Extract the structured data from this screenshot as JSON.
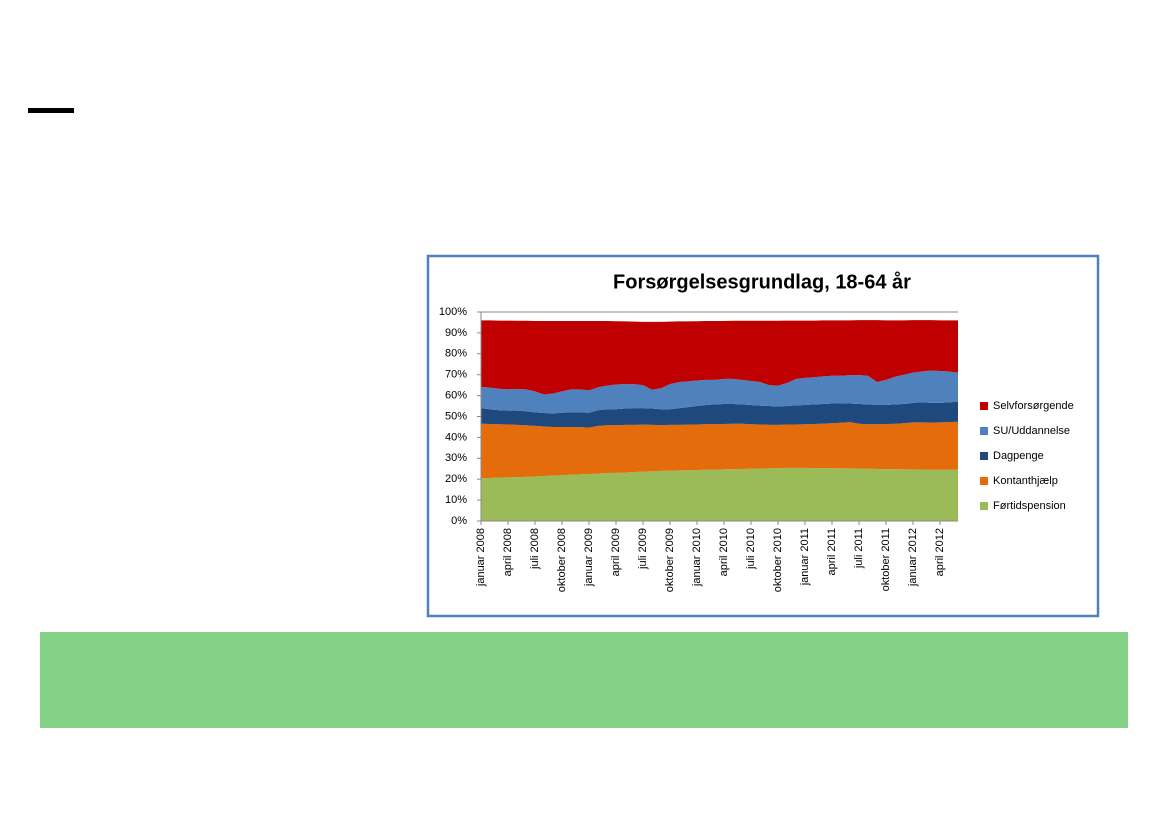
{
  "chart_data": {
    "type": "stacked_area",
    "title": "Forsørgelsesgrundlag, 18-64 år",
    "categories": [
      "januar 2008",
      null,
      null,
      "april 2008",
      null,
      null,
      "juli 2008",
      null,
      null,
      "oktober 2008",
      null,
      null,
      "januar 2009",
      null,
      null,
      "april 2009",
      null,
      null,
      "juli 2009",
      null,
      null,
      "oktober 2009",
      null,
      null,
      "januar 2010",
      null,
      null,
      "april 2010",
      null,
      null,
      "juli 2010",
      null,
      null,
      "oktober 2010",
      null,
      null,
      "januar 2011",
      null,
      null,
      "april 2011",
      null,
      null,
      "juli 2011",
      null,
      null,
      "oktober 2011",
      null,
      null,
      "januar 2012",
      null,
      null,
      "april 2012",
      null,
      null
    ],
    "series": [
      {
        "name": "Førtidspension",
        "color": "#9bbb59",
        "values": [
          20.5,
          20.6,
          20.8,
          20.9,
          21.0,
          21.1,
          21.3,
          21.5,
          21.7,
          21.9,
          22.1,
          22.3,
          22.5,
          22.7,
          22.9,
          23.0,
          23.2,
          23.4,
          23.6,
          23.8,
          24.0,
          24.1,
          24.2,
          24.3,
          24.4,
          24.5,
          24.6,
          24.7,
          24.8,
          24.9,
          25.0,
          25.1,
          25.2,
          25.3,
          25.4,
          25.4,
          25.4,
          25.3,
          25.3,
          25.3,
          25.2,
          25.2,
          25.1,
          25.0,
          24.9,
          24.8,
          24.8,
          24.7,
          24.7,
          24.6,
          24.6,
          24.5,
          24.5,
          24.5
        ]
      },
      {
        "name": "Kontanthjælp",
        "color": "#e46c0a",
        "values": [
          26.0,
          25.8,
          25.5,
          25.3,
          25.0,
          24.7,
          24.2,
          23.7,
          23.3,
          23.1,
          22.9,
          22.6,
          22.2,
          22.8,
          22.9,
          22.8,
          22.8,
          22.6,
          22.5,
          22.2,
          21.9,
          21.9,
          21.8,
          21.8,
          21.8,
          21.8,
          21.8,
          21.7,
          21.7,
          21.6,
          21.3,
          21.1,
          20.8,
          20.7,
          20.7,
          20.8,
          20.9,
          21.1,
          21.3,
          21.5,
          21.8,
          22.1,
          21.4,
          21.3,
          21.4,
          21.6,
          21.7,
          22.1,
          22.5,
          22.6,
          22.5,
          22.7,
          22.8,
          23.0
        ]
      },
      {
        "name": "Dagpenge",
        "color": "#1f497d",
        "values": [
          7.5,
          7.1,
          6.7,
          6.6,
          6.8,
          6.7,
          6.5,
          6.5,
          6.5,
          6.8,
          7.0,
          7.1,
          7.1,
          7.5,
          7.7,
          7.7,
          7.8,
          8.0,
          7.9,
          7.8,
          7.6,
          7.5,
          8.0,
          8.4,
          8.8,
          9.2,
          9.4,
          9.6,
          9.5,
          9.3,
          9.2,
          9.0,
          9.0,
          8.8,
          8.9,
          9.1,
          9.2,
          9.4,
          9.4,
          9.4,
          9.3,
          8.9,
          9.5,
          9.5,
          9.2,
          9.1,
          9.3,
          9.2,
          9.3,
          9.6,
          9.4,
          9.3,
          9.5,
          9.5
        ]
      },
      {
        "name": "SU/Uddannelse",
        "color": "#4f81bd",
        "values": [
          10.2,
          10.3,
          10.3,
          10.2,
          10.4,
          10.5,
          10.0,
          8.8,
          9.5,
          10.2,
          11.0,
          11.0,
          10.7,
          11.0,
          11.3,
          11.8,
          11.7,
          11.5,
          11.0,
          9.0,
          10.0,
          12.0,
          12.5,
          12.3,
          12.2,
          12.0,
          11.7,
          12.0,
          12.0,
          11.7,
          11.5,
          11.3,
          10.0,
          10.0,
          11.0,
          12.7,
          13.0,
          13.0,
          13.2,
          13.3,
          13.2,
          13.6,
          13.8,
          13.7,
          11.0,
          12.0,
          13.2,
          14.0,
          14.5,
          14.7,
          15.5,
          15.3,
          14.7,
          14.0
        ]
      },
      {
        "name": "Selvforsørgende",
        "color": "#c00000",
        "values": [
          31.8,
          32.2,
          32.6,
          32.9,
          32.6,
          32.8,
          33.7,
          35.2,
          34.7,
          33.7,
          32.7,
          32.7,
          33.2,
          31.7,
          30.9,
          30.3,
          30.0,
          29.9,
          30.3,
          32.5,
          31.8,
          29.9,
          29.0,
          28.7,
          28.4,
          28.2,
          28.2,
          27.7,
          27.8,
          28.3,
          28.8,
          29.3,
          30.8,
          31.0,
          29.9,
          27.9,
          27.4,
          27.1,
          26.8,
          26.5,
          26.5,
          26.2,
          26.3,
          26.6,
          29.6,
          28.5,
          27.0,
          26.0,
          25.1,
          24.6,
          24.1,
          24.2,
          24.5,
          25.0
        ]
      }
    ],
    "ylim": [
      0,
      100
    ],
    "yticks": [
      {
        "value": 0,
        "label": "0%"
      },
      {
        "value": 10,
        "label": "10%"
      },
      {
        "value": 20,
        "label": "20%"
      },
      {
        "value": 30,
        "label": "30%"
      },
      {
        "value": 40,
        "label": "40%"
      },
      {
        "value": 50,
        "label": "50%"
      },
      {
        "value": 60,
        "label": "60%"
      },
      {
        "value": 70,
        "label": "70%"
      },
      {
        "value": 80,
        "label": "80%"
      },
      {
        "value": 90,
        "label": "90%"
      },
      {
        "value": 100,
        "label": "100%"
      }
    ],
    "grid": false,
    "legend": "right"
  }
}
